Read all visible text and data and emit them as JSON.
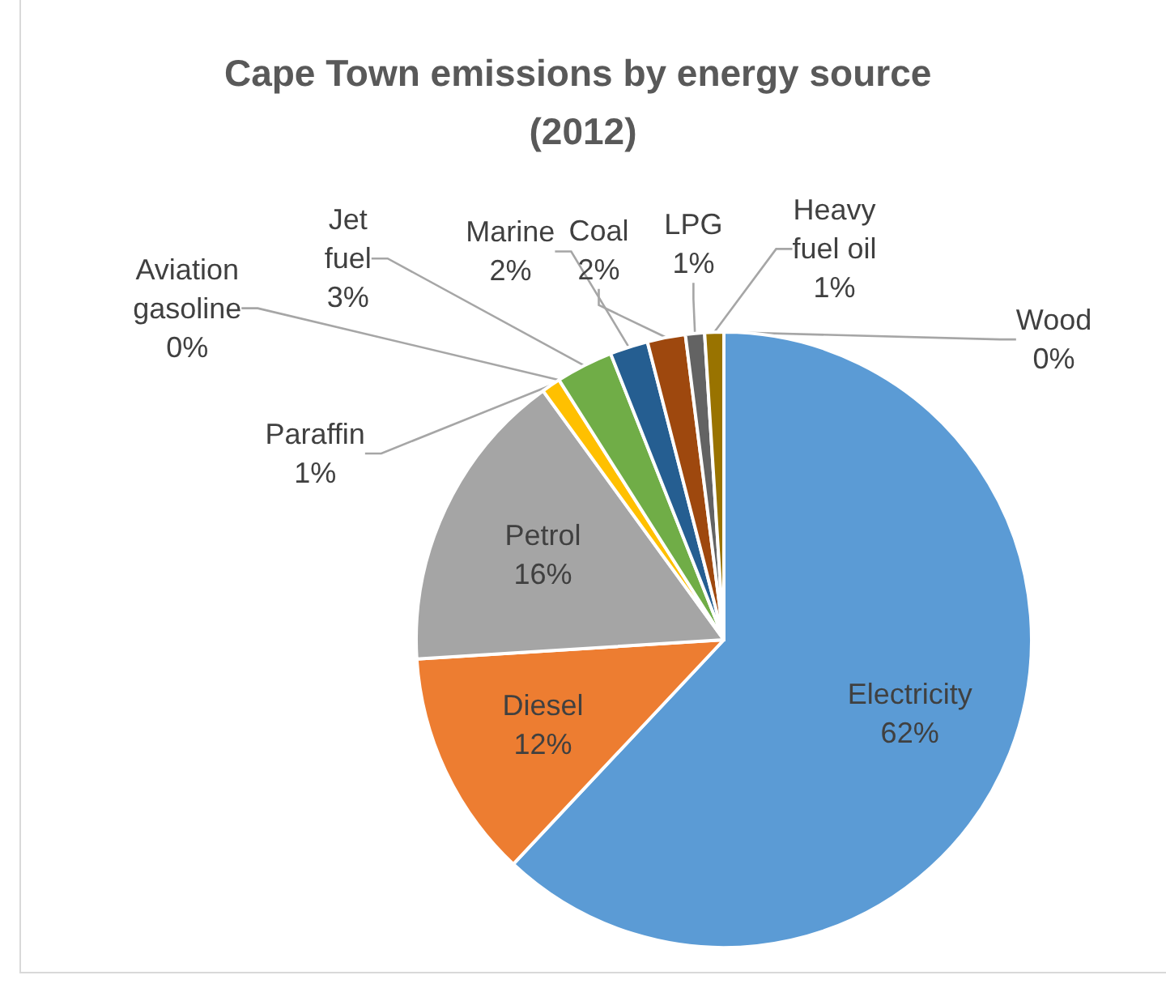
{
  "chart_data": {
    "type": "pie",
    "title": "Cape Town emissions by energy source (2012)",
    "categories": [
      "Electricity",
      "Diesel",
      "Petrol",
      "Paraffin",
      "Aviation gasoline",
      "Jet fuel",
      "Marine",
      "Coal",
      "LPG",
      "Heavy fuel oil",
      "Wood"
    ],
    "values": [
      62,
      12,
      16,
      1,
      0,
      3,
      2,
      2,
      1,
      1,
      0
    ],
    "value_labels": [
      "62%",
      "12%",
      "16%",
      "1%",
      "0%",
      "3%",
      "2%",
      "2%",
      "1%",
      "1%",
      "0%"
    ],
    "colors": [
      "#5b9bd5",
      "#ed7d31",
      "#a5a5a5",
      "#ffc000",
      "#4472c4",
      "#70ad47",
      "#255e91",
      "#9e480e",
      "#636363",
      "#997300",
      "#264478"
    ]
  }
}
